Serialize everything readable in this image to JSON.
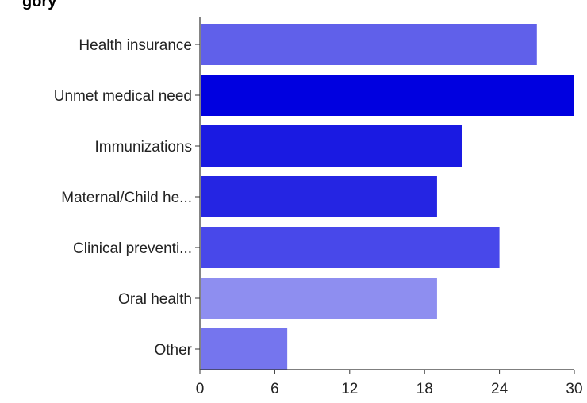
{
  "title_fragment": "gory",
  "chart_data": {
    "type": "bar",
    "orientation": "horizontal",
    "title": "gory",
    "categories": [
      "Health insurance",
      "Unmet medical need",
      "Immunizations",
      "Maternal/Child he...",
      "Clinical preventi...",
      "Oral health",
      "Other"
    ],
    "values": [
      27,
      30,
      21,
      19,
      24,
      19,
      7
    ],
    "colors": [
      "#6060ea",
      "#0000e0",
      "#1a1ae2",
      "#2525e3",
      "#4848ea",
      "#8e8ef0",
      "#7575ee"
    ],
    "xlim": [
      0,
      30
    ],
    "xticks": [
      "0",
      "6",
      "12",
      "18",
      "24",
      "30"
    ],
    "grid": false,
    "legend": "none"
  }
}
